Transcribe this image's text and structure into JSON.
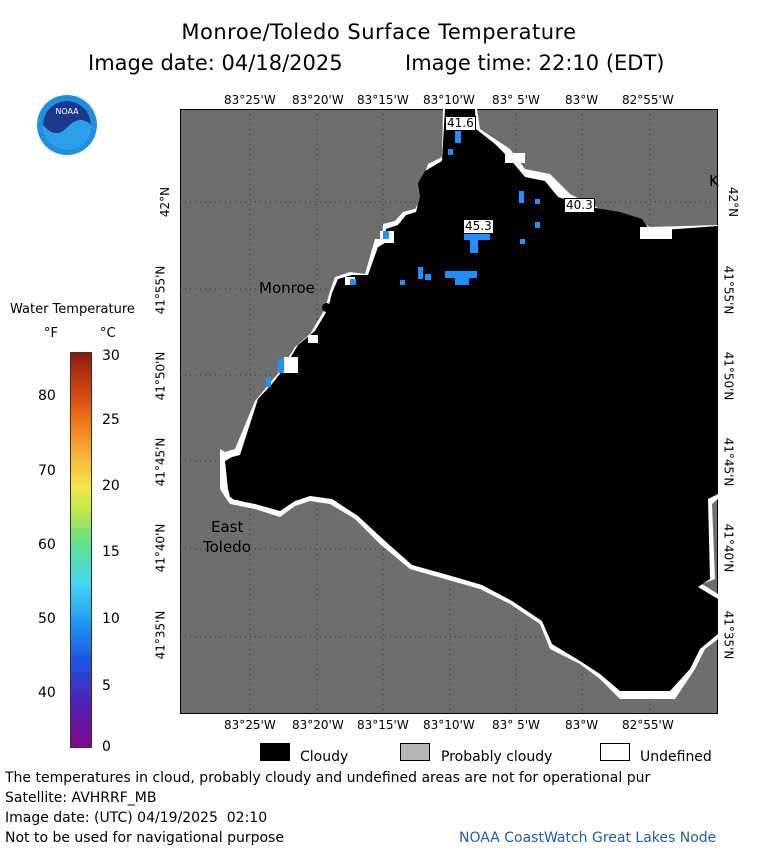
{
  "header": {
    "title": "Monroe/Toledo Surface Temperature",
    "subtitle_date": "Image date: 04/18/2025",
    "subtitle_time": "Image time: 22:10 (EDT)"
  },
  "colors": {
    "land": "#6e6e6e",
    "cloud": "#000000",
    "probably_cloudy": "#b4b4b4",
    "undefined": "#ffffff",
    "water_cold": "#1e90ff",
    "noaa_blue": "#1f5fa8"
  },
  "logo": {
    "text": "NOAA"
  },
  "map": {
    "top_ticks": [
      "83°25'W",
      "83°20'W",
      "83°15'W",
      "83°10'W",
      "83° 5'W",
      "83°W",
      "82°55'W"
    ],
    "bottom_ticks": [
      "83°25'W",
      "83°20'W",
      "83°15'W",
      "83°10'W",
      "83° 5'W",
      "83°W",
      "82°55'W"
    ],
    "left_ticks": [
      "42°N",
      "41°55'N",
      "41°50'N",
      "41°45'N",
      "41°40'N",
      "41°35'N"
    ],
    "right_ticks": [
      "42°N",
      "41°55'N",
      "41°50'N",
      "41°45'N",
      "41°40'N",
      "41°35'N"
    ],
    "places": {
      "monroe": "Monroe",
      "east_toledo_line1": "East",
      "east_toledo_line2": "Toledo",
      "edge_letter": "K"
    },
    "temp_labels": [
      {
        "value": "41.6"
      },
      {
        "value": "45.3"
      },
      {
        "value": "40.3"
      }
    ]
  },
  "legend": {
    "title": "Water Temperature",
    "unit_f": "°F",
    "unit_c": "°C",
    "fahrenheit_ticks": [
      "80",
      "70",
      "60",
      "50",
      "40"
    ],
    "celsius_ticks": [
      "30",
      "25",
      "20",
      "15",
      "10",
      "5",
      "0"
    ]
  },
  "key": {
    "cloudy": "Cloudy",
    "probably_cloudy": "Probably cloudy",
    "undefined": "Undefined"
  },
  "footer": {
    "note": "The temperatures in cloud, probably cloudy and undefined areas are not for operational pur",
    "satellite": "Satellite: AVHRRF_MB",
    "utc_date": "Image date: (UTC) 04/19/2025  02:10",
    "disclaimer": "Not to be used for navigational purpose",
    "credit": "NOAA CoastWatch Great Lakes Node"
  }
}
